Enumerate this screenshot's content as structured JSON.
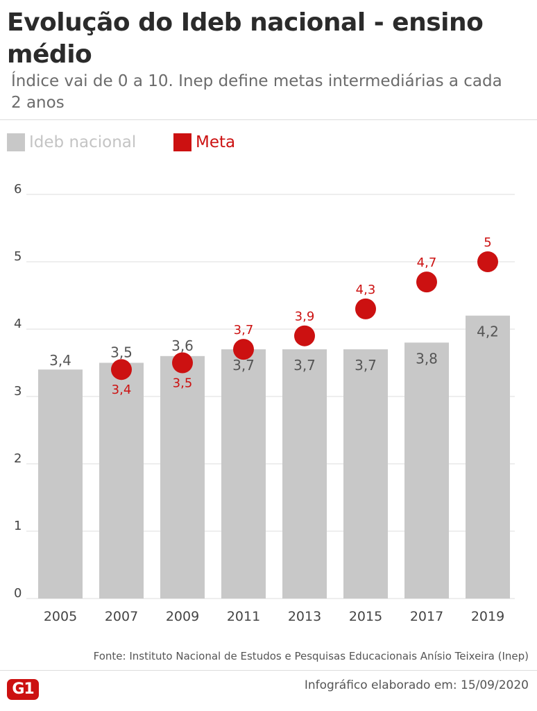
{
  "header": {
    "title": "Evolução do Ideb nacional - ensino médio",
    "subtitle": "Índice vai de 0 a 10. Inep define metas intermediárias a cada 2 anos"
  },
  "legend": {
    "ideb_label": "Ideb nacional",
    "meta_label": "Meta"
  },
  "colors": {
    "bar": "#c8c8c8",
    "meta": "#cc1111",
    "grid": "#dddddd",
    "bar_label": "#555555",
    "axis_text": "#444444"
  },
  "chart_data": {
    "type": "bar",
    "categories": [
      "2005",
      "2007",
      "2009",
      "2011",
      "2013",
      "2015",
      "2017",
      "2019"
    ],
    "series": [
      {
        "name": "Ideb nacional",
        "type": "bar",
        "values": [
          3.4,
          3.5,
          3.6,
          3.7,
          3.7,
          3.7,
          3.8,
          4.2
        ],
        "labels": [
          "3,4",
          "3,5",
          "3,6",
          "3,7",
          "3,7",
          "3,7",
          "3,8",
          "4,2"
        ]
      },
      {
        "name": "Meta",
        "type": "scatter",
        "values": [
          null,
          3.4,
          3.5,
          3.7,
          3.9,
          4.3,
          4.7,
          5.0
        ],
        "labels": [
          null,
          "3,4",
          "3,5",
          "3,7",
          "3,9",
          "4,3",
          "4,7",
          "5"
        ]
      }
    ],
    "ylim": [
      0,
      6
    ],
    "yticks": [
      0,
      1,
      2,
      3,
      4,
      5,
      6
    ],
    "grid": true,
    "legend_position": "top-left"
  },
  "footer": {
    "source": "Fonte: Instituto Nacional de Estudos e Pesquisas Educacionais Anísio Teixeira (Inep)",
    "logo": "G1",
    "credit": "Infográfico elaborado em: 15/09/2020"
  }
}
